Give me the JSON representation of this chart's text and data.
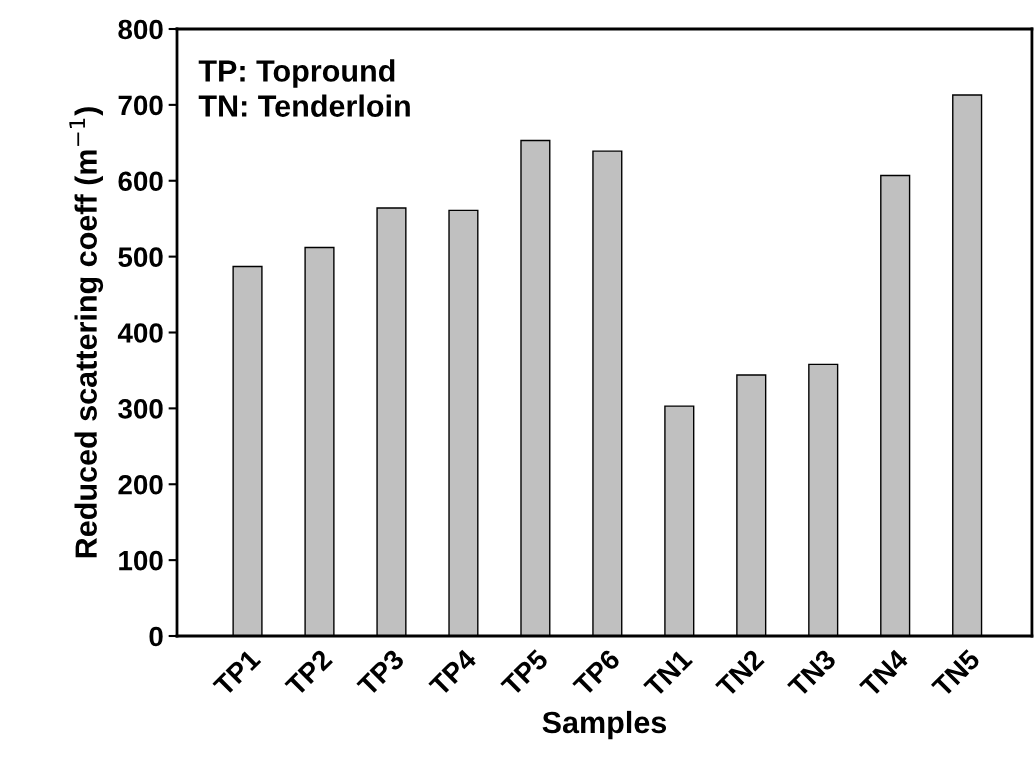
{
  "chart_data": {
    "type": "bar",
    "xlabel": "Samples",
    "ylabel": "Reduced scattering coeff (m$^{−1}$)",
    "categories": [
      "TP1",
      "TP2",
      "TP3",
      "TP4",
      "TP5",
      "TP6",
      "TN1",
      "TN2",
      "TN3",
      "TN4",
      "TN5"
    ],
    "values": [
      487,
      512,
      564,
      561,
      653,
      639,
      303,
      344,
      358,
      607,
      713
    ],
    "color": "#c0c0c0",
    "ylim": [
      0,
      800
    ],
    "yticks": [
      0,
      100,
      200,
      300,
      400,
      500,
      600,
      700,
      800
    ],
    "annotations": [
      "TP: Topround\nTN: Tenderloin"
    ],
    "grid": false,
    "legend": false
  }
}
